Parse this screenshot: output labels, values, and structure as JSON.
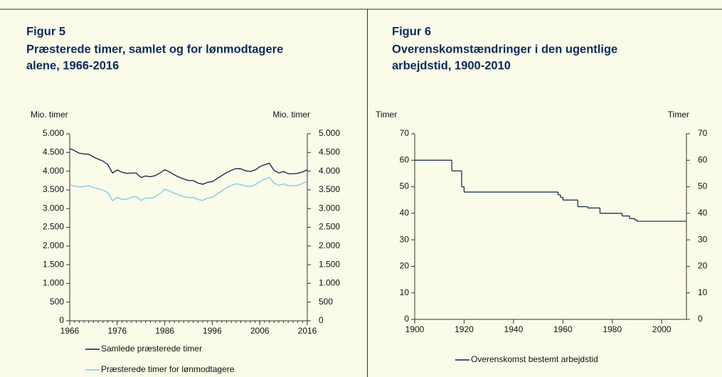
{
  "chart_data": [
    {
      "type": "line",
      "label": "Figur 5",
      "title_lines": [
        "Præsterede timer, samlet og for lønmodtagere",
        "alene, 1966-2016"
      ],
      "ylabel": "Mio. timer",
      "y2label": "Mio. timer",
      "x": [
        1966,
        1967,
        1968,
        1969,
        1970,
        1971,
        1972,
        1973,
        1974,
        1975,
        1976,
        1977,
        1978,
        1979,
        1980,
        1981,
        1982,
        1983,
        1984,
        1985,
        1986,
        1987,
        1988,
        1989,
        1990,
        1991,
        1992,
        1993,
        1994,
        1995,
        1996,
        1997,
        1998,
        1999,
        2000,
        2001,
        2002,
        2003,
        2004,
        2005,
        2006,
        2007,
        2008,
        2009,
        2010,
        2011,
        2012,
        2013,
        2014,
        2015,
        2016
      ],
      "series": [
        {
          "name": "Samlede præsterede timer",
          "color": "#0b1f4b",
          "values": [
            4600,
            4550,
            4480,
            4460,
            4450,
            4380,
            4320,
            4270,
            4180,
            3950,
            4030,
            3970,
            3940,
            3950,
            3950,
            3830,
            3870,
            3850,
            3880,
            3950,
            4040,
            3980,
            3900,
            3840,
            3790,
            3750,
            3750,
            3680,
            3650,
            3700,
            3720,
            3800,
            3880,
            3960,
            4020,
            4070,
            4060,
            4010,
            3990,
            4030,
            4120,
            4170,
            4210,
            4020,
            3950,
            3990,
            3930,
            3930,
            3940,
            3980,
            4040
          ]
        },
        {
          "name": "Præsterede timer for lønmodtagere",
          "color": "#7fc7e6",
          "values": [
            3640,
            3600,
            3580,
            3590,
            3610,
            3560,
            3530,
            3490,
            3430,
            3210,
            3300,
            3250,
            3250,
            3300,
            3320,
            3220,
            3280,
            3280,
            3310,
            3400,
            3520,
            3470,
            3410,
            3360,
            3320,
            3290,
            3300,
            3240,
            3220,
            3280,
            3300,
            3390,
            3470,
            3560,
            3620,
            3660,
            3640,
            3600,
            3590,
            3630,
            3720,
            3780,
            3840,
            3680,
            3620,
            3660,
            3610,
            3610,
            3620,
            3670,
            3730
          ]
        }
      ],
      "xlim": [
        1966,
        2016
      ],
      "xticks": [
        1966,
        1976,
        1986,
        1996,
        2006,
        2016
      ],
      "ylim": [
        0,
        5000
      ],
      "yticks": [
        0,
        {
          "value": 500,
          "label": "500"
        },
        {
          "value": 1000,
          "label": "1.000"
        },
        {
          "value": 1500,
          "label": "1.500"
        },
        {
          "value": 2000,
          "label": "2.000"
        },
        {
          "value": 2500,
          "label": "2.500"
        },
        {
          "value": 3000,
          "label": "3.000"
        },
        {
          "value": 3500,
          "label": "3.500"
        },
        {
          "value": 4000,
          "label": "4.000"
        },
        {
          "value": 4500,
          "label": "4.500"
        },
        {
          "value": 5000,
          "label": "5.000"
        }
      ],
      "y2lim": [
        0,
        5000
      ],
      "y2ticks": [
        0,
        {
          "value": 500,
          "label": "500"
        },
        {
          "value": 1000,
          "label": "1.000"
        },
        {
          "value": 1500,
          "label": "1.500"
        },
        {
          "value": 2000,
          "label": "2.000"
        },
        {
          "value": 2500,
          "label": "2.500"
        },
        {
          "value": 3000,
          "label": "3.000"
        },
        {
          "value": 3500,
          "label": "3.500"
        },
        {
          "value": 4000,
          "label": "4.000"
        },
        {
          "value": 4500,
          "label": "4.500"
        },
        {
          "value": 5000,
          "label": "5.000"
        }
      ],
      "minor_xticks": true
    },
    {
      "type": "step",
      "label": "Figur 6",
      "title_lines": [
        "Overenskomstændringer i den ugentlige",
        "arbejdstid, 1900-2010"
      ],
      "ylabel": "Timer",
      "y2label": "Timer",
      "x": [
        1900,
        1915,
        1919,
        1920,
        1958,
        1959,
        1960,
        1964,
        1966,
        1970,
        1974,
        1975,
        1984,
        1987,
        1989,
        1990,
        2010
      ],
      "series": [
        {
          "name": "Overenskomst bestemt arbejdstid",
          "color": "#0b1f4b",
          "values": [
            60,
            56,
            50,
            48,
            47,
            46,
            45,
            45,
            42.5,
            42,
            42,
            40,
            39,
            38,
            37.5,
            37,
            37
          ]
        }
      ],
      "xlim": [
        1900,
        2010
      ],
      "xticks": [
        1900,
        1920,
        1940,
        1960,
        1980,
        2000
      ],
      "ylim": [
        0,
        70
      ],
      "yticks": [
        0,
        10,
        20,
        30,
        40,
        50,
        60,
        70
      ],
      "y2lim": [
        0,
        70
      ],
      "y2ticks": [
        0,
        10,
        20,
        30,
        40,
        50,
        60,
        70
      ],
      "minor_xticks": false
    }
  ]
}
